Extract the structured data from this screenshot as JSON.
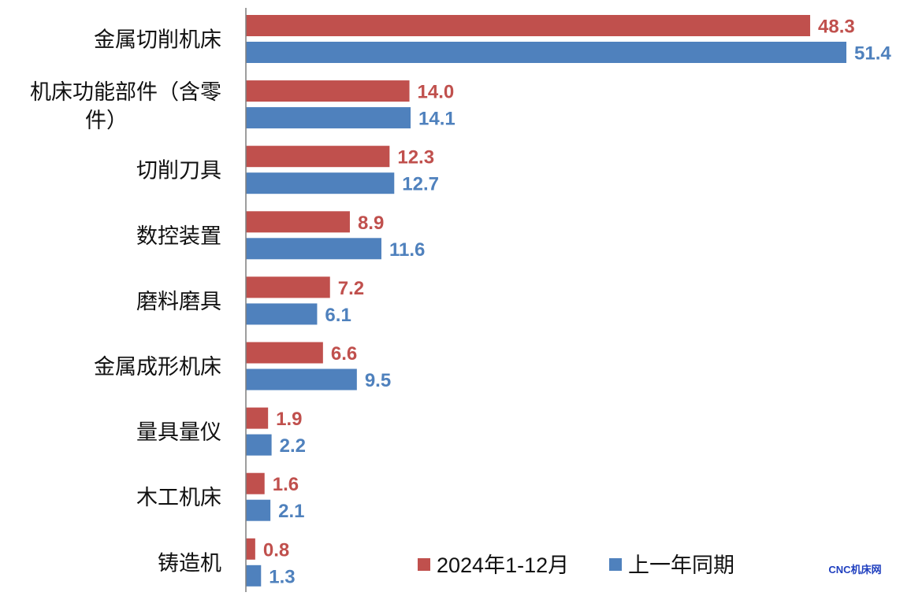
{
  "chart_data": {
    "type": "bar",
    "orientation": "horizontal",
    "categories": [
      "金属切削机床",
      "机床功能部件（含零件）",
      "切削刀具",
      "数控装置",
      "磨料磨具",
      "金属成形机床",
      "量具量仪",
      "木工机床",
      "铸造机"
    ],
    "category_display": [
      [
        "金属切削机床"
      ],
      [
        "机床功能部件（含零",
        "件）"
      ],
      [
        "切削刀具"
      ],
      [
        "数控装置"
      ],
      [
        "磨料磨具"
      ],
      [
        "金属成形机床"
      ],
      [
        "量具量仪"
      ],
      [
        "木工机床"
      ],
      [
        "铸造机"
      ]
    ],
    "series": [
      {
        "name": "2024年1-12月",
        "color": "#c0504d",
        "values": [
          48.3,
          14.0,
          12.3,
          8.9,
          7.2,
          6.6,
          1.9,
          1.6,
          0.8
        ]
      },
      {
        "name": "上一年同期",
        "color": "#4f81bd",
        "values": [
          51.4,
          14.1,
          12.7,
          11.6,
          6.1,
          9.5,
          2.2,
          2.1,
          1.3
        ]
      }
    ],
    "value_labels": [
      [
        "48.3",
        "14.0",
        "12.3",
        "8.9",
        "7.2",
        "6.6",
        "1.9",
        "1.6",
        "0.8"
      ],
      [
        "51.4",
        "14.1",
        "12.7",
        "11.6",
        "6.1",
        "9.5",
        "2.2",
        "2.1",
        "1.3"
      ]
    ],
    "title": "",
    "xlabel": "",
    "ylabel": "",
    "xlim": [
      0,
      51.4
    ],
    "grid": false,
    "legend_position": "bottom-right"
  },
  "watermark": {
    "text": "CNC机床网",
    "color": "#1f3fbf"
  },
  "colors": {
    "axis": "#7f7f7f",
    "text": "#111111"
  }
}
